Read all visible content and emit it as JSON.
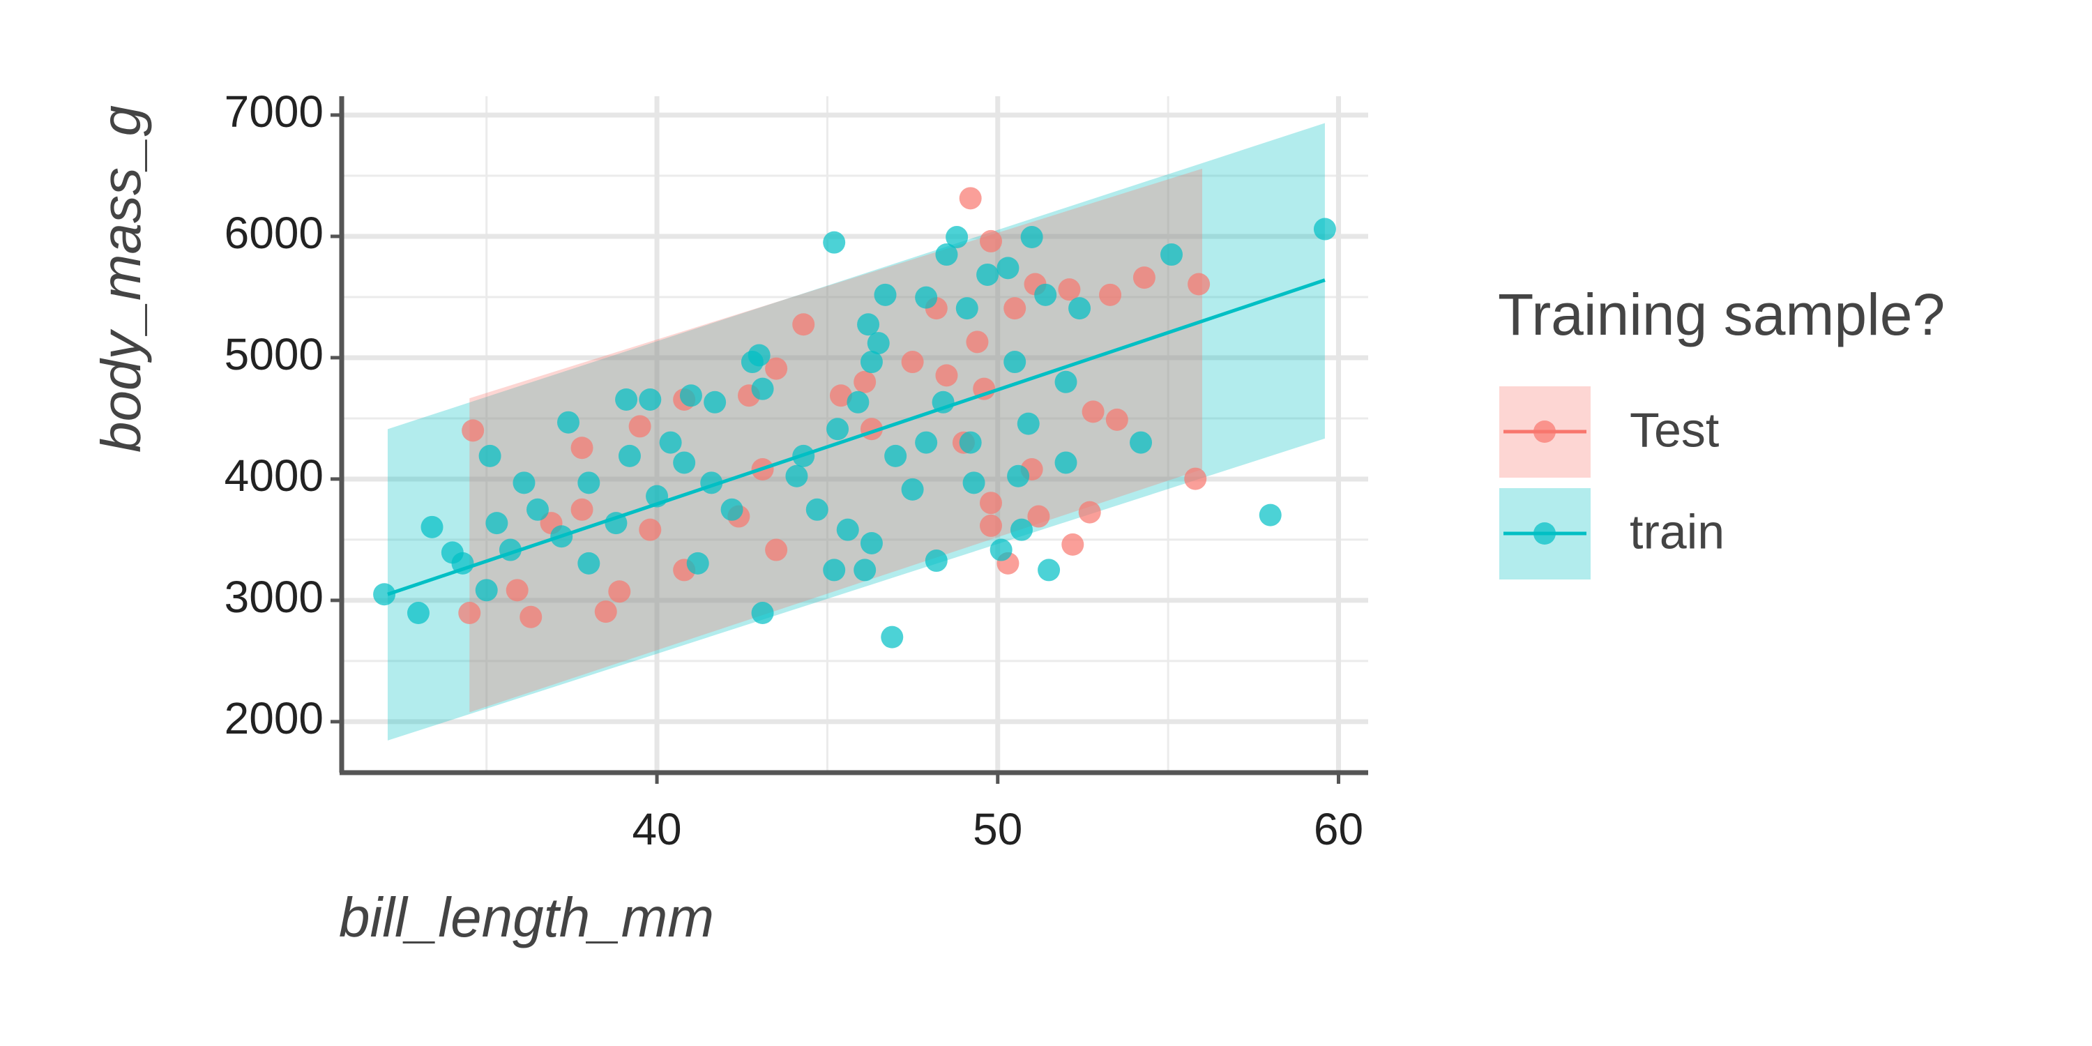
{
  "chart_data": {
    "type": "scatter",
    "xlabel": "bill_length_mm",
    "ylabel": "body_mass_g",
    "legend_title": "Training sample?",
    "legend_position": "right",
    "grid": true,
    "xlim": [
      30.75,
      60.87
    ],
    "ylim": [
      1580,
      7155
    ],
    "xticks": [
      40,
      50,
      60
    ],
    "yticks": [
      2000,
      3000,
      4000,
      5000,
      6000,
      7000
    ],
    "xminor": [
      35,
      45,
      55
    ],
    "yminor": [
      2500,
      3500,
      4500,
      5500,
      6500
    ],
    "series": [
      {
        "name": "Test",
        "color": "#F8766D",
        "x": [
          49.2,
          49.8,
          55.9,
          55.8,
          34.6,
          34.5,
          36.3,
          38.5,
          38.9,
          50.3,
          52.2,
          52.7,
          54.3,
          53.3,
          52.8,
          53.5,
          52.1,
          51.1,
          49.6,
          49.0,
          48.2,
          48.5,
          47.5,
          46.1,
          45.4,
          44.3,
          43.5,
          42.7,
          42.4,
          43.5,
          40.8,
          39.8,
          37.8,
          36.9,
          35.9,
          39.5,
          40.8,
          43.1,
          46.3,
          49.8,
          49.8,
          51.0,
          50.5,
          51.2,
          37.8,
          49.4
        ],
        "values": [
          6314,
          5960,
          5606,
          4002,
          4400,
          2896,
          2863,
          2907,
          3073,
          3305,
          3460,
          3726,
          5660,
          5518,
          4555,
          4489,
          5562,
          5606,
          4743,
          4300,
          5407,
          4854,
          4965,
          4800,
          4688,
          5274,
          4910,
          4688,
          3692,
          3416,
          3250,
          3582,
          3748,
          3637,
          3084,
          4434,
          4655,
          4080,
          4412,
          3803,
          3615,
          4080,
          5407,
          3692,
          4257,
          5130
        ],
        "band": {
          "x": [
            34.5,
            56.0
          ],
          "lower": [
            2077,
            4080
          ],
          "upper": [
            4666,
            6558
          ]
        }
      },
      {
        "name": "train",
        "color": "#00BFC4",
        "x": [
          32.0,
          33.0,
          33.4,
          34.0,
          34.3,
          35.1,
          35.3,
          35.7,
          36.5,
          37.2,
          37.4,
          38.0,
          38.8,
          39.2,
          39.1,
          39.8,
          40.0,
          40.4,
          41.0,
          41.2,
          41.6,
          41.7,
          42.8,
          43.0,
          43.1,
          43.1,
          44.1,
          44.7,
          45.2,
          45.2,
          45.3,
          45.9,
          46.2,
          46.3,
          46.7,
          46.9,
          47.0,
          47.5,
          47.9,
          48.2,
          48.5,
          48.8,
          49.1,
          49.3,
          49.7,
          50.1,
          50.3,
          50.5,
          50.9,
          51.0,
          51.4,
          51.5,
          52.0,
          52.0,
          52.4,
          55.1,
          54.2,
          58.0,
          59.6,
          44.3,
          42.2,
          40.8,
          38.0,
          36.1,
          35.0,
          45.6,
          46.3,
          46.1,
          48.4,
          49.2,
          50.6,
          50.7,
          47.9,
          46.5
        ],
        "values": [
          3050,
          2896,
          3604,
          3394,
          3305,
          4190,
          3637,
          3416,
          3748,
          3527,
          4467,
          3305,
          3637,
          4190,
          4655,
          4655,
          3858,
          4301,
          4688,
          3305,
          3969,
          4633,
          4965,
          5020,
          4743,
          2896,
          4024,
          3748,
          5950,
          3250,
          4412,
          4633,
          5274,
          4965,
          5518,
          2697,
          4190,
          3914,
          5496,
          3327,
          5850,
          5994,
          5407,
          3969,
          5684,
          3416,
          5739,
          4965,
          4456,
          5994,
          5518,
          3250,
          4800,
          4135,
          5407,
          5850,
          4301,
          3703,
          6060,
          4190,
          3748,
          4135,
          3969,
          3969,
          3084,
          3582,
          3471,
          3250,
          4633,
          4301,
          4024,
          3582,
          4301,
          5120
        ],
        "band": {
          "x": [
            32.1,
            59.6
          ],
          "lower": [
            1845,
            4334
          ],
          "upper": [
            4411,
            6934
          ]
        },
        "fit": {
          "x": [
            32.1,
            59.6
          ],
          "y": [
            3050,
            5640
          ]
        }
      }
    ]
  }
}
